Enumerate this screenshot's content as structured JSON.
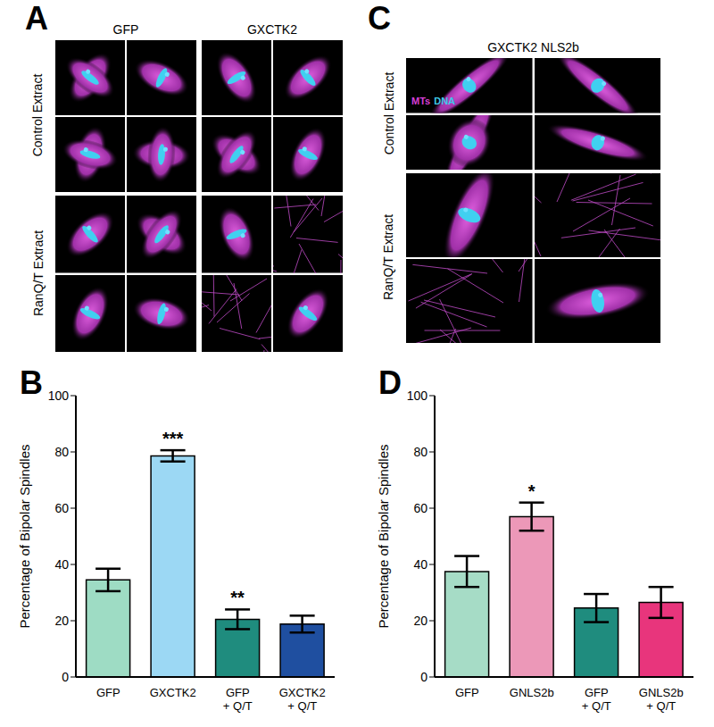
{
  "image_panels": [
    {
      "title": "A",
      "columns": [
        "GFP",
        "GXCTK2"
      ],
      "rows": [
        "Control Extract",
        "RanQ/T Extract"
      ]
    },
    {
      "title": "C",
      "columns": [
        "GXCTK2 NLS2b"
      ],
      "rows": [
        "Control Extract",
        "RanQ/T Extract"
      ],
      "channels": [
        {
          "name": "MTs",
          "color": "#d63fd6"
        },
        {
          "name": "DNA",
          "color": "#3fc8e8"
        }
      ]
    }
  ],
  "chart_data": [
    {
      "type": "bar",
      "title": "B",
      "ylabel": "Percentage of Bipolar Spindles",
      "categories": [
        "GFP",
        "GXCTK2",
        "GFP + Q/T",
        "GXCTK2 + Q/T"
      ],
      "values": [
        34.5,
        78.6,
        20.5,
        18.8
      ],
      "errors": [
        4,
        2,
        3.5,
        3
      ],
      "annotations": [
        null,
        "***",
        "**",
        null
      ],
      "colors": [
        "#9edcc4",
        "#9cd8f4",
        "#1f8c7e",
        "#1f4fa0"
      ],
      "ylim": [
        0,
        100
      ],
      "yticks": [
        0,
        20,
        40,
        60,
        80,
        100
      ]
    },
    {
      "type": "bar",
      "title": "D",
      "ylabel": "Percentage of Bipolar Spindles",
      "categories": [
        "GFP",
        "GNLS2b",
        "GFP + Q/T",
        "GNLS2b + Q/T"
      ],
      "values": [
        37.5,
        57,
        24.5,
        26.5
      ],
      "errors": [
        5.5,
        5,
        5,
        5.5
      ],
      "annotations": [
        null,
        "*",
        null,
        null
      ],
      "colors": [
        "#a6dcc6",
        "#ec98b8",
        "#1f8c7e",
        "#e8357c"
      ],
      "ylim": [
        0,
        100
      ],
      "yticks": [
        0,
        20,
        40,
        60,
        80,
        100
      ]
    }
  ]
}
